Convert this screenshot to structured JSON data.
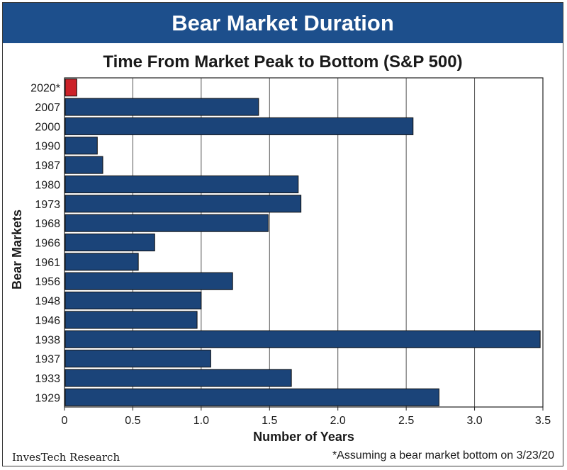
{
  "banner_title": "Bear Market Duration",
  "source_label": "InvesTech Research",
  "footnote": "*Assuming a bear market bottom on 3/23/20",
  "colors": {
    "banner": "#1d4f8c",
    "bar": "#1b4479",
    "highlight": "#cc2229",
    "grid": "#555555"
  },
  "chart_data": {
    "type": "bar",
    "orientation": "horizontal",
    "title": "Time From Market Peak to Bottom (S&P 500)",
    "xlabel": "Number of Years",
    "ylabel": "Bear Markets",
    "xlim": [
      0,
      3.5
    ],
    "xticks": [
      "0",
      "0.5",
      "1.0",
      "1.5",
      "2.0",
      "2.5",
      "3.0",
      "3.5"
    ],
    "grid": "vertical",
    "categories": [
      "2020*",
      "2007",
      "2000",
      "1990",
      "1987",
      "1980",
      "1973",
      "1968",
      "1966",
      "1961",
      "1956",
      "1948",
      "1946",
      "1938",
      "1937",
      "1933",
      "1929"
    ],
    "values": [
      0.09,
      1.42,
      2.55,
      0.24,
      0.28,
      1.71,
      1.73,
      1.49,
      0.66,
      0.54,
      1.23,
      1.0,
      0.97,
      3.48,
      1.07,
      1.66,
      2.74
    ],
    "highlight": [
      "2020*"
    ]
  }
}
